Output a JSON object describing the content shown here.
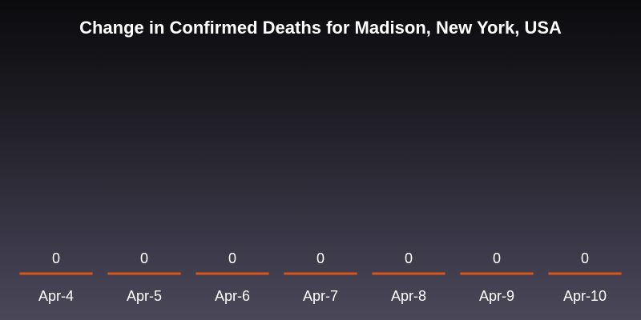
{
  "chart_data": {
    "type": "bar",
    "title": "Change in Confirmed Deaths for Madison, New York, USA",
    "categories": [
      "Apr-4",
      "Apr-5",
      "Apr-6",
      "Apr-7",
      "Apr-8",
      "Apr-9",
      "Apr-10"
    ],
    "values": [
      0,
      0,
      0,
      0,
      0,
      0,
      0
    ],
    "data_labels": [
      "0",
      "0",
      "0",
      "0",
      "0",
      "0",
      "0"
    ],
    "xlabel": "",
    "ylabel": "",
    "ylim": [
      0,
      1
    ],
    "grid": false,
    "legend": "none",
    "bar_color": "#d4561e"
  }
}
